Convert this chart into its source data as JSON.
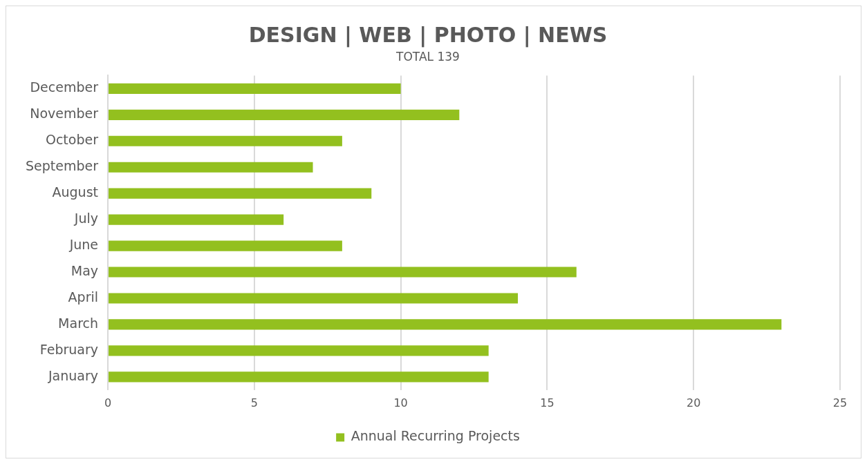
{
  "chart_data": {
    "type": "bar",
    "orientation": "horizontal",
    "title": "DESIGN | WEB | PHOTO | NEWS",
    "subtitle": "TOTAL 139",
    "categories": [
      "December",
      "November",
      "October",
      "September",
      "August",
      "July",
      "June",
      "May",
      "April",
      "March",
      "February",
      "January"
    ],
    "series": [
      {
        "name": "Annual Recurring Projects",
        "color": "#93c01f",
        "values": [
          10,
          12,
          8,
          7,
          9,
          6,
          8,
          16,
          14,
          23,
          13,
          13
        ]
      }
    ],
    "xlim": [
      0,
      25
    ],
    "xticks": [
      0,
      5,
      10,
      15,
      20,
      25
    ],
    "grid": "x",
    "legend": "bottom"
  }
}
